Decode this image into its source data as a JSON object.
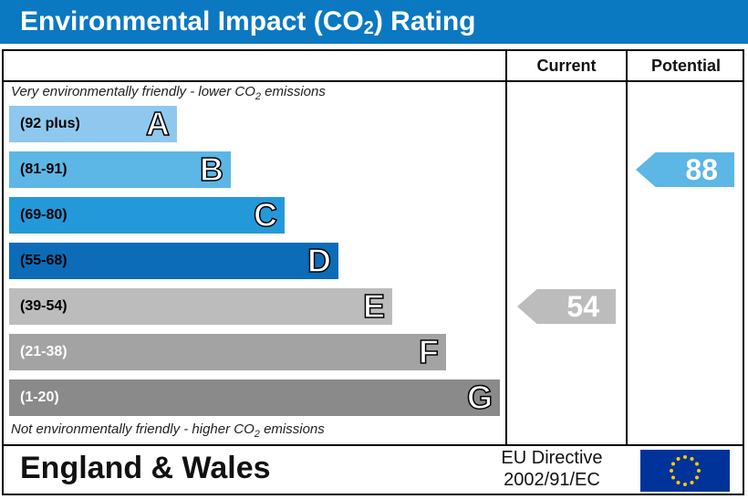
{
  "header": {
    "title_pre": "Environmental Impact (CO",
    "title_sub": "2",
    "title_post": ") Rating"
  },
  "columns": {
    "current": "Current",
    "potential": "Potential"
  },
  "notes": {
    "top_pre": "Very environmentally friendly - lower CO",
    "top_sub": "2",
    "top_post": " emissions",
    "bottom_pre": "Not environmentally friendly - higher CO",
    "bottom_sub": "2",
    "bottom_post": " emissions"
  },
  "chart_data": {
    "type": "bar",
    "categories": [
      "A",
      "B",
      "C",
      "D",
      "E",
      "F",
      "G"
    ],
    "ranges": [
      "(92 plus)",
      "(81-91)",
      "(69-80)",
      "(55-68)",
      "(39-54)",
      "(21-38)",
      "(1-20)"
    ],
    "colors": [
      "#8fc8ee",
      "#5cb6e6",
      "#2499d9",
      "#0c6cb8",
      "#bcbcbc",
      "#a3a3a3",
      "#8a8a8a"
    ],
    "range_text_colors": [
      "#000000",
      "#000000",
      "#000000",
      "#000000",
      "#000000",
      "#ffffff",
      "#ffffff"
    ],
    "current": {
      "value": 54,
      "color": "#bcbcbc"
    },
    "potential": {
      "value": 88,
      "color": "#5cb6e6"
    }
  },
  "footer": {
    "region": "England & Wales",
    "directive_line1": "EU Directive",
    "directive_line2": "2002/91/EC",
    "flag_icon": "eu-flag-icon"
  }
}
